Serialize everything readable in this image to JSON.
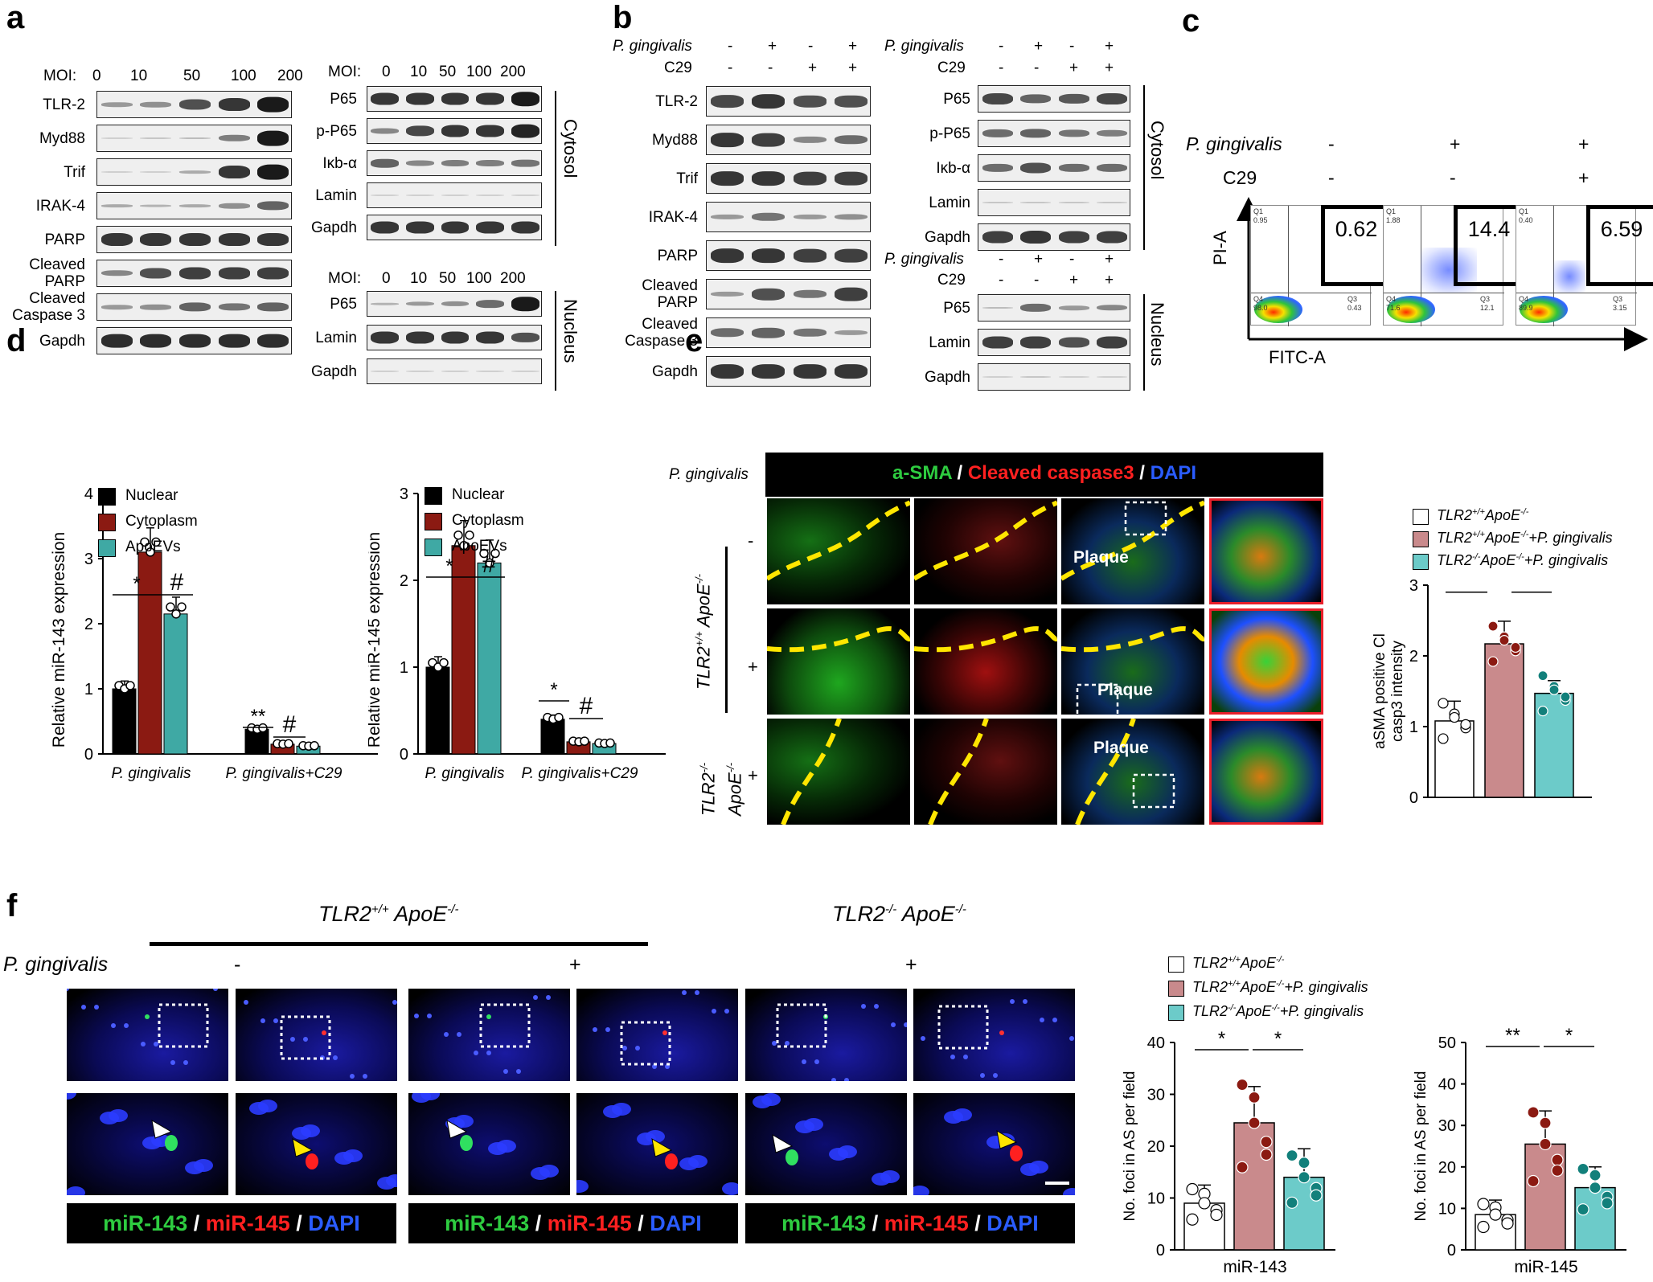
{
  "panel_labels": {
    "a": "a",
    "b": "b",
    "c": "c",
    "d": "d",
    "e": "e",
    "f": "f"
  },
  "a": {
    "moi_label": "MOI:",
    "moi_values": [
      "0",
      "10",
      "50",
      "100",
      "200"
    ],
    "left_rows": [
      {
        "label": "TLR-2",
        "bands": [
          0.3,
          0.35,
          0.7,
          0.85,
          1.0
        ]
      },
      {
        "label": "Myd88",
        "bands": [
          0,
          0.05,
          0.1,
          0.45,
          1.0
        ]
      },
      {
        "label": "Trif",
        "bands": [
          0,
          0,
          0.2,
          0.85,
          1.0
        ]
      },
      {
        "label": "IRAK-4",
        "bands": [
          0.2,
          0.15,
          0.2,
          0.35,
          0.6
        ]
      },
      {
        "label": "PARP",
        "bands": [
          0.85,
          0.85,
          0.85,
          0.85,
          0.85
        ]
      },
      {
        "label": "Cleaved\nPARP",
        "bands": [
          0.4,
          0.7,
          0.8,
          0.8,
          0.8
        ]
      },
      {
        "label": "Cleaved\nCaspase 3",
        "bands": [
          0.3,
          0.35,
          0.6,
          0.5,
          0.6
        ]
      },
      {
        "label": "Gapdh",
        "bands": [
          0.9,
          0.9,
          0.9,
          0.9,
          0.9
        ]
      }
    ],
    "right_top_rows": [
      {
        "label": "P65",
        "bands": [
          0.85,
          0.85,
          0.85,
          0.85,
          1.0
        ]
      },
      {
        "label": "p-P65",
        "bands": [
          0.4,
          0.75,
          0.85,
          0.85,
          0.95
        ]
      },
      {
        "label": "Iκb-α",
        "bands": [
          0.6,
          0.4,
          0.45,
          0.45,
          0.5
        ]
      },
      {
        "label": "Lamin",
        "bands": [
          0,
          0,
          0,
          0,
          0
        ]
      },
      {
        "label": "Gapdh",
        "bands": [
          0.85,
          0.85,
          0.85,
          0.85,
          0.85
        ]
      }
    ],
    "right_bottom_rows": [
      {
        "label": "P65",
        "bands": [
          0.15,
          0.3,
          0.35,
          0.55,
          1.0
        ]
      },
      {
        "label": "Lamin",
        "bands": [
          0.85,
          0.85,
          0.85,
          0.85,
          0.7
        ]
      },
      {
        "label": "Gapdh",
        "bands": [
          0,
          0,
          0,
          0,
          0
        ]
      }
    ],
    "cytosol": "Cytosol",
    "nucleus": "Nucleus"
  },
  "b": {
    "pg_label": "P. gingivalis",
    "c29_label": "C29",
    "pg_signs": [
      "-",
      "+",
      "-",
      "+"
    ],
    "c29_signs": [
      "-",
      "-",
      "+",
      "+"
    ],
    "left_rows": [
      {
        "label": "TLR-2",
        "bands": [
          0.75,
          0.85,
          0.7,
          0.7
        ]
      },
      {
        "label": "Myd88",
        "bands": [
          0.85,
          0.8,
          0.4,
          0.55
        ]
      },
      {
        "label": "Trif",
        "bands": [
          0.85,
          0.85,
          0.8,
          0.8
        ]
      },
      {
        "label": "IRAK-4",
        "bands": [
          0.3,
          0.5,
          0.3,
          0.35
        ]
      },
      {
        "label": "PARP",
        "bands": [
          0.85,
          0.85,
          0.8,
          0.8
        ]
      },
      {
        "label": "Cleaved\nPARP",
        "bands": [
          0.3,
          0.7,
          0.5,
          0.8
        ]
      },
      {
        "label": "Cleaved\nCaspase 3",
        "bands": [
          0.55,
          0.6,
          0.5,
          0.3
        ]
      },
      {
        "label": "Gapdh",
        "bands": [
          0.85,
          0.85,
          0.85,
          0.85
        ]
      }
    ],
    "right_top_rows": [
      {
        "label": "P65",
        "bands": [
          0.75,
          0.6,
          0.65,
          0.75
        ]
      },
      {
        "label": "p-P65",
        "bands": [
          0.55,
          0.6,
          0.5,
          0.45
        ]
      },
      {
        "label": "Iκb-α",
        "bands": [
          0.55,
          0.7,
          0.55,
          0.55
        ]
      },
      {
        "label": "Lamin",
        "bands": [
          0.05,
          0.05,
          0.05,
          0.05
        ]
      },
      {
        "label": "Gapdh",
        "bands": [
          0.8,
          0.85,
          0.8,
          0.8
        ]
      }
    ],
    "right_bottom_rows": [
      {
        "label": "P65",
        "bands": [
          0.1,
          0.55,
          0.3,
          0.4
        ]
      },
      {
        "label": "Lamin",
        "bands": [
          0.8,
          0.8,
          0.7,
          0.8
        ]
      },
      {
        "label": "Gapdh",
        "bands": [
          0,
          0.05,
          0,
          0
        ]
      }
    ],
    "cytosol": "Cytosol",
    "nucleus": "Nucleus"
  },
  "c": {
    "pg_label": "P. gingivalis",
    "c29_label": "C29",
    "pg_signs": [
      "-",
      "+",
      "+"
    ],
    "c29_signs": [
      "-",
      "-",
      "+"
    ],
    "y_axis": "PI-A",
    "x_axis": "FITC-A",
    "plots": [
      {
        "q1": "0.95",
        "q2": "0.62",
        "q3": "0.43",
        "q4": "98.0"
      },
      {
        "q1": "1.88",
        "q2": "14.4",
        "q3": "12.1",
        "q4": "71.6"
      },
      {
        "q1": "0.40",
        "q2": "6.59",
        "q3": "3.15",
        "q4": "89.9"
      }
    ],
    "q1_tag": "Q1",
    "q3_tag": "Q3",
    "q4_tag": "Q4"
  },
  "d": {
    "legend": [
      "Nuclear",
      "Cytoplasm",
      "ApoEVs"
    ],
    "colors": {
      "nuclear": "#000000",
      "cytoplasm": "#8b1a12",
      "apoevs": "#3fa9a4"
    },
    "chart_data": [
      {
        "type": "bar",
        "ylabel": "Relative miR-143 expression",
        "categories": [
          "P. gingivalis",
          "P. gingivalis+C29"
        ],
        "ylim": [
          0,
          4
        ],
        "yticks": [
          "0",
          "1",
          "2",
          "3",
          "4"
        ],
        "series": [
          {
            "name": "Nuclear",
            "values": [
              1.0,
              0.38
            ]
          },
          {
            "name": "Cytoplasm",
            "values": [
              3.1,
              0.15
            ]
          },
          {
            "name": "ApoEVs",
            "values": [
              2.15,
              0.12
            ]
          }
        ],
        "annotations": [
          "*",
          "#",
          "**",
          "#"
        ]
      },
      {
        "type": "bar",
        "ylabel": "Relative miR-145 expression",
        "categories": [
          "P. gingivalis",
          "P. gingivalis+C29"
        ],
        "ylim": [
          0,
          3
        ],
        "yticks": [
          "0",
          "1",
          "2",
          "3"
        ],
        "series": [
          {
            "name": "Nuclear",
            "values": [
              1.0,
              0.4
            ]
          },
          {
            "name": "Cytoplasm",
            "values": [
              2.4,
              0.14
            ]
          },
          {
            "name": "ApoEVs",
            "values": [
              2.2,
              0.12
            ]
          }
        ],
        "annotations": [
          "*",
          "#",
          "*",
          "#"
        ]
      }
    ]
  },
  "e": {
    "pg_label": "P. gingivalis",
    "stain_sma": "a-SMA",
    "stain_sep": " / ",
    "stain_casp": "Cleaved caspase3",
    "stain_dapi": "DAPI",
    "row_signs": [
      "-",
      "+",
      "+"
    ],
    "group1": "TLR2+/+ ApoE-/-",
    "group2": "TLR2-/- ApoE-/-",
    "plaque": "Plaque",
    "legend": [
      "TLR2+/+ ApoE-/-",
      "TLR2+/+ ApoE-/-+P. gingivalis",
      "TLR2-/- ApoE-/-+P. gingivalis"
    ],
    "colors": {
      "g1": "#ffffff",
      "g2": "#c98a8c",
      "g3": "#6ccbc9"
    },
    "chart_data": {
      "type": "bar",
      "ylabel": "aSMA positive Cl casp3 intensity",
      "categories": [
        "TLR2+/+ ApoE-/-",
        "TLR2+/+ ApoE-/-+P. gingivalis",
        "TLR2-/- ApoE-/-+P. gingivalis"
      ],
      "values": [
        1.08,
        2.17,
        1.47
      ],
      "errors": [
        0.28,
        0.32,
        0.18
      ],
      "ylim": [
        0,
        3
      ],
      "yticks": [
        "0",
        "1",
        "2",
        "3"
      ]
    }
  },
  "f": {
    "group1": "TLR2+/+ ApoE-/-",
    "group2": "TLR2-/- ApoE-/-",
    "pg_label": "P. gingivalis",
    "signs": [
      "-",
      "+",
      "+"
    ],
    "stain_143": "miR-143",
    "stain_145": "miR-145",
    "stain_dapi": "DAPI",
    "stain_sep": " / ",
    "legend": [
      "TLR2+/+ ApoE-/-",
      "TLR2+/+ ApoE-/-+P. gingivalis",
      "TLR2-/- ApoE-/-+P. gingivalis"
    ],
    "chart_data": [
      {
        "type": "bar",
        "ylabel": "No. foci in AS per field",
        "xlabel": "miR-143",
        "categories": [
          "TLR2+/+ ApoE-/-",
          "TLR2+/+ ApoE-/-+P. gingivalis",
          "TLR2-/- ApoE-/-+P. gingivalis"
        ],
        "values": [
          9,
          24.5,
          14
        ],
        "errors": [
          3.5,
          7,
          5.5
        ],
        "ylim": [
          0,
          40
        ],
        "yticks": [
          "0",
          "10",
          "20",
          "30",
          "40"
        ],
        "annotations": [
          "*",
          "*"
        ]
      },
      {
        "type": "bar",
        "ylabel": "No. foci in AS per field",
        "xlabel": "miR-145",
        "categories": [
          "TLR2+/+ ApoE-/-",
          "TLR2+/+ ApoE-/-+P. gingivalis",
          "TLR2-/- ApoE-/-+P. gingivalis"
        ],
        "values": [
          8.5,
          25.5,
          15
        ],
        "errors": [
          3.5,
          8,
          5
        ],
        "ylim": [
          0,
          50
        ],
        "yticks": [
          "0",
          "10",
          "20",
          "30",
          "40",
          "50"
        ],
        "annotations": [
          "**",
          "*"
        ]
      }
    ]
  }
}
